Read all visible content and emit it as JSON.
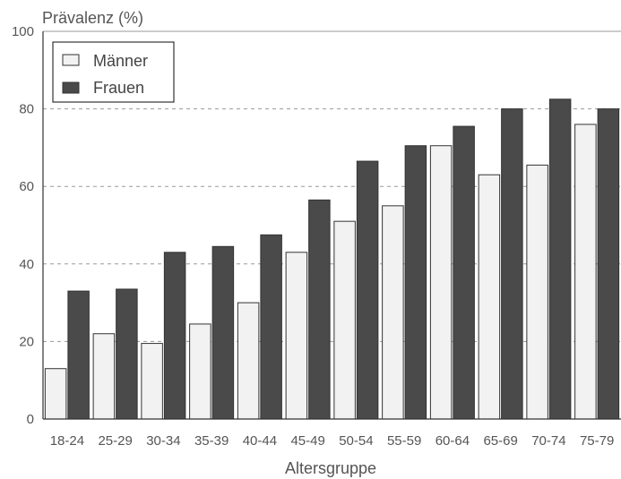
{
  "chart_data": {
    "type": "bar",
    "ylabel": "Prävalenz (%)",
    "xlabel": "Altersgruppe",
    "ylim": [
      0,
      100
    ],
    "yticks": [
      0,
      20,
      40,
      60,
      80,
      100
    ],
    "grid": "horizontal dashed at 20, 40, 60, 80",
    "legend_position": "top-left",
    "categories": [
      "18-24",
      "25-29",
      "30-34",
      "35-39",
      "40-44",
      "45-49",
      "50-54",
      "55-59",
      "60-64",
      "65-69",
      "70-74",
      "75-79"
    ],
    "series": [
      {
        "name": "Männer",
        "color": "#f2f2f2",
        "values": [
          13,
          22,
          19.5,
          24.5,
          30,
          43,
          51,
          55,
          70.5,
          63,
          65.5,
          76
        ]
      },
      {
        "name": "Frauen",
        "color": "#4a4a4a",
        "values": [
          33,
          33.5,
          43,
          44.5,
          47.5,
          56.5,
          66.5,
          70.5,
          75.5,
          80,
          82.5,
          80
        ]
      }
    ]
  }
}
